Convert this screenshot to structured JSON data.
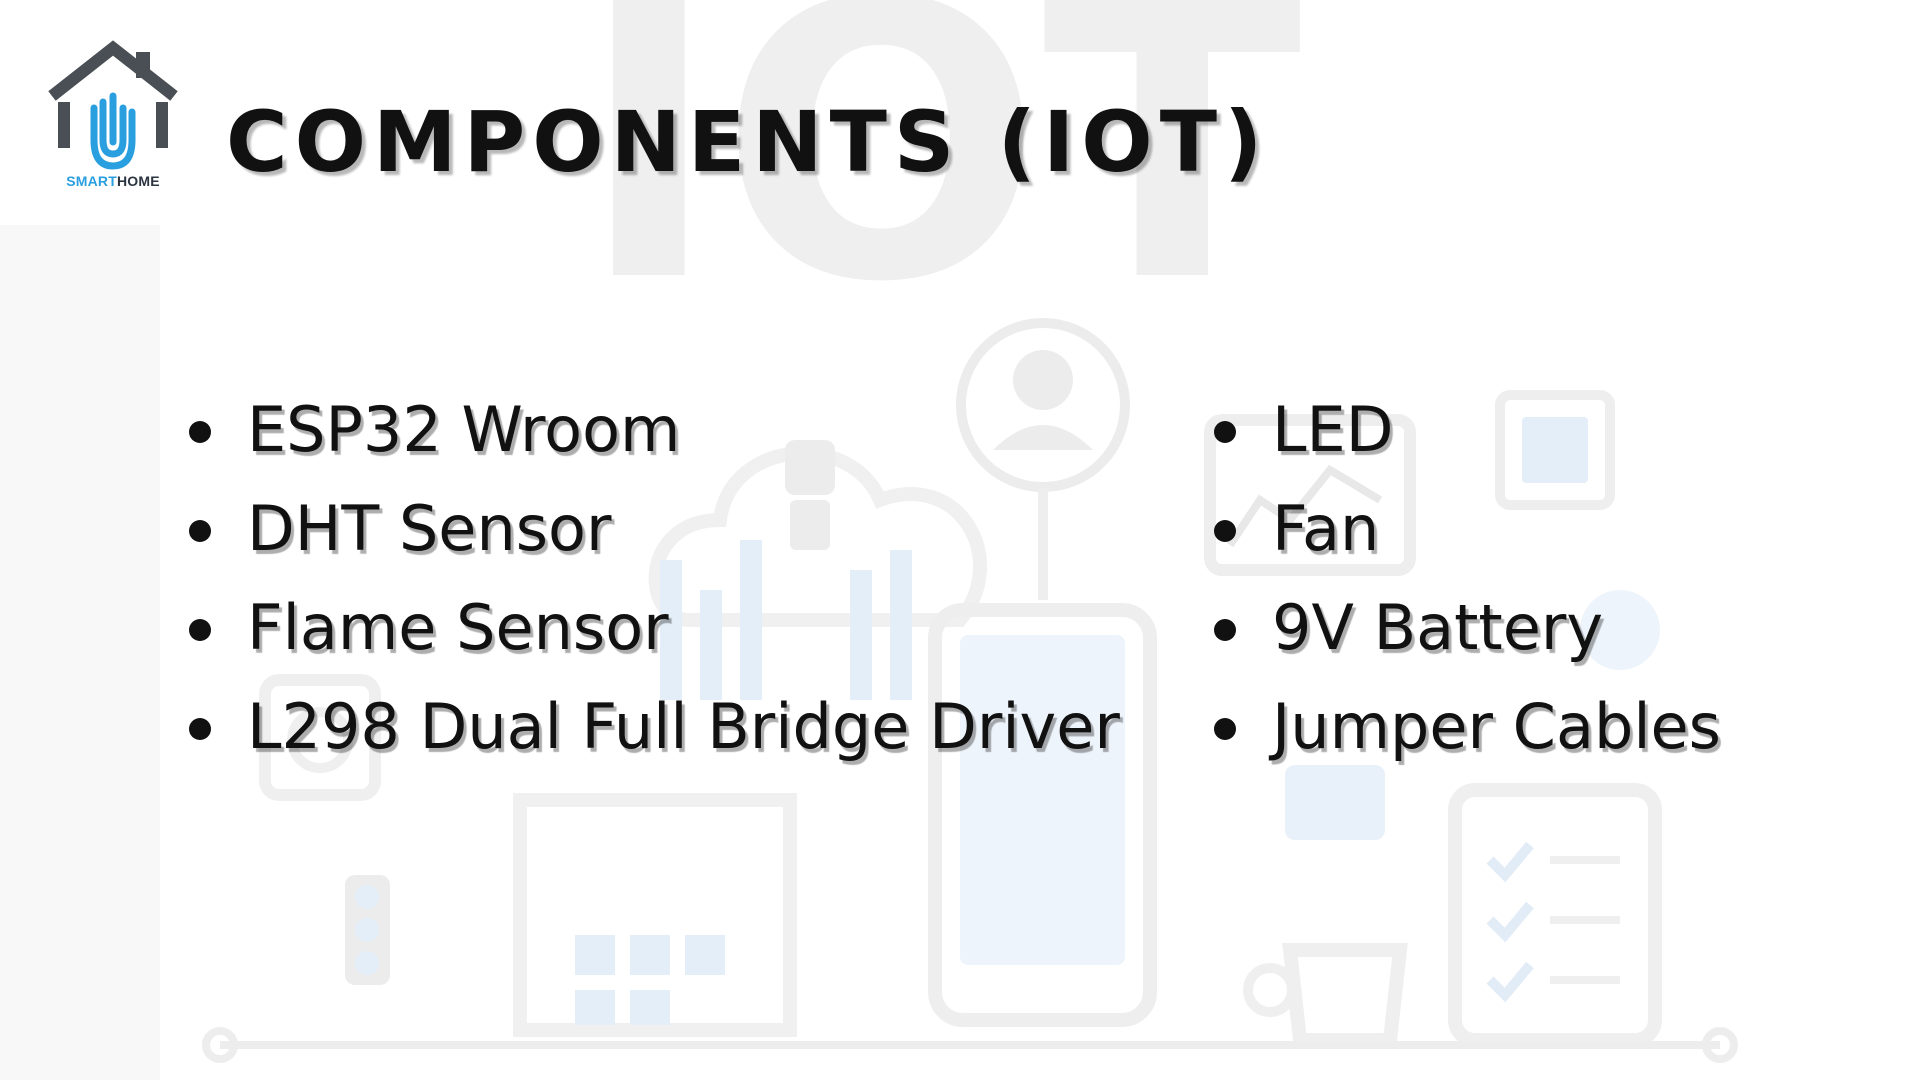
{
  "slide": {
    "logo": {
      "icon": "house-hand-icon",
      "text_smart": "SMART",
      "text_home": "HOME",
      "colors": {
        "house": "#4a4f55",
        "hand": "#2a9fe0"
      }
    },
    "title": "COMPONENTS (IOT)",
    "watermark": "IOT",
    "components_left": [
      "ESP32 Wroom",
      "DHT Sensor",
      "Flame Sensor",
      "L298 Dual Full Bridge Driver"
    ],
    "components_right": [
      "LED",
      "Fan",
      "9V Battery",
      "Jumper Cables"
    ],
    "colors": {
      "text": "#111111",
      "watermark": "#eeeeee",
      "accent_faint": "#e3eef8"
    }
  }
}
